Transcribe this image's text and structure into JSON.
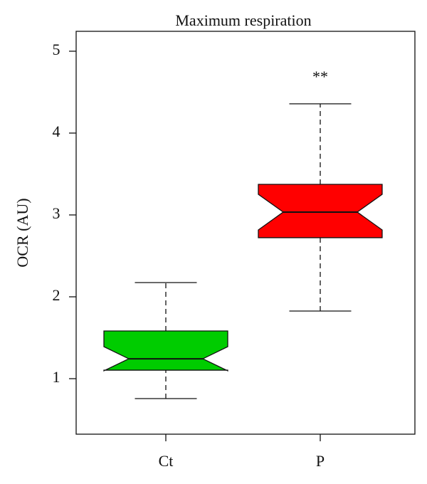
{
  "chart_data": {
    "type": "boxplot",
    "title": "Maximum respiration",
    "y_label": "OCR (AU)",
    "categories": [
      "Ct",
      "P"
    ],
    "boxes": [
      {
        "color": "#00cc00",
        "whislo": 0.757,
        "q1": 1.104,
        "notch_lo": 1.096,
        "med": 1.243,
        "notch_hi": 1.391,
        "q3": 1.583,
        "whishi": 2.174
      },
      {
        "color": "#ff0000",
        "whislo": 1.826,
        "q1": 2.722,
        "notch_lo": 2.817,
        "med": 3.035,
        "notch_hi": 3.252,
        "q3": 3.374,
        "whishi": 4.357,
        "annotation": "**",
        "annotation_y": 4.67
      }
    ],
    "ylim": [
      0.322,
      5.243
    ],
    "yticks": [
      1,
      2,
      3,
      4,
      5
    ]
  }
}
